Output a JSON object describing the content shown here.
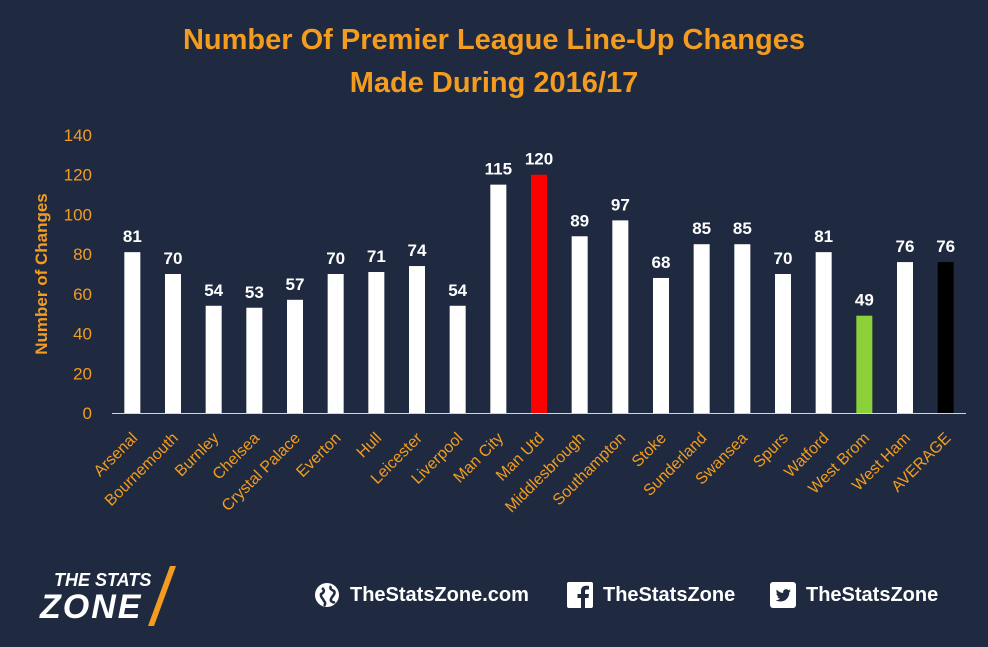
{
  "chart_data": {
    "type": "bar",
    "title": "Number Of Premier League Line-Up Changes Made During 2016/17",
    "title_lines": [
      "Number Of Premier League Line-Up Changes",
      "Made During 2016/17"
    ],
    "xlabel": "",
    "ylabel": "Number of Changes",
    "ylim": [
      0,
      140
    ],
    "yticks": [
      0,
      20,
      40,
      60,
      80,
      100,
      120,
      140
    ],
    "grid": false,
    "legend": "none",
    "categories": [
      "Arsenal",
      "Bournemouth",
      "Burnley",
      "Chelsea",
      "Crystal Palace",
      "Everton",
      "Hull",
      "Leicester",
      "Liverpool",
      "Man City",
      "Man Utd",
      "Middlesbrough",
      "Southampton",
      "Stoke",
      "Sunderland",
      "Swansea",
      "Spurs",
      "Watford",
      "West Brom",
      "West Ham",
      "AVERAGE"
    ],
    "values": [
      81,
      70,
      54,
      53,
      57,
      70,
      71,
      74,
      54,
      115,
      120,
      89,
      97,
      68,
      85,
      85,
      70,
      81,
      49,
      76,
      76
    ],
    "colors": {
      "default": "#ffffff",
      "Man Utd": "#ff0000",
      "West Brom": "#8dd13a",
      "AVERAGE": "#000000"
    }
  },
  "theme": {
    "background": "#1f2a40",
    "accent": "#f39c1f",
    "text": "#ffffff"
  },
  "footer": {
    "logo_line1": "THE STATS",
    "logo_line2": "ZONE",
    "website": "TheStatsZone.com",
    "website_icon": "globe-icon",
    "facebook": "TheStatsZone",
    "facebook_icon": "facebook-icon",
    "twitter": "TheStatsZone",
    "twitter_icon": "twitter-icon"
  }
}
